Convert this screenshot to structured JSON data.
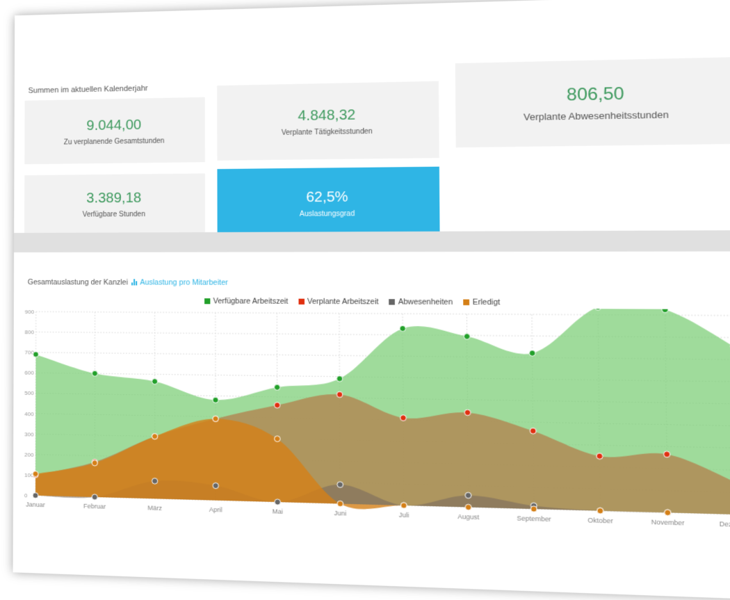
{
  "summary": {
    "title": "Summen im aktuellen Kalenderjahr",
    "tiles": [
      {
        "value": "9.044,00",
        "label": "Zu verplanende Gesamtstunden"
      },
      {
        "value": "4.848,32",
        "label": "Verplante Tätigkeitsstunden"
      },
      {
        "value": "806,50",
        "label": "Verplante Abwesenheitsstunden"
      },
      {
        "value": "3.389,18",
        "label": "Verfügbare Stunden"
      },
      {
        "value": "62,5%",
        "label": "Auslastungsgrad"
      }
    ]
  },
  "chart_header": {
    "title": "Gesamtauslastung der Kanzlei",
    "link_label": "Auslastung pro Mitarbeiter",
    "link_icon": "bar-chart-icon"
  },
  "colors": {
    "accent": "#2fb5e5",
    "green": "#7fcf7a",
    "red": "#e03010",
    "grey": "#666666",
    "orange": "#d47f17"
  },
  "chart_data": {
    "type": "area",
    "x": [
      "Januar",
      "Februar",
      "März",
      "April",
      "Mai",
      "Juni",
      "Juli",
      "August",
      "September",
      "Oktober",
      "November",
      "Dezember"
    ],
    "ylim": [
      0,
      900
    ],
    "yticks": [
      0,
      100,
      200,
      300,
      400,
      500,
      600,
      700,
      800,
      900
    ],
    "grid": true,
    "legend_position": "top-center",
    "series": [
      {
        "name": "Verfügbare Arbeitszeit",
        "color": "#22a02a",
        "fill": "#7fcf7a",
        "fill_opacity": 0.75,
        "values": [
          690,
          600,
          565,
          480,
          545,
          590,
          830,
          795,
          720,
          935,
          925,
          760
        ]
      },
      {
        "name": "Verplante Arbeitszeit",
        "color": "#e03010",
        "fill": "#b08a55",
        "fill_opacity": 0.85,
        "values": [
          100,
          170,
          300,
          390,
          460,
          515,
          410,
          440,
          360,
          250,
          265,
          145
        ]
      },
      {
        "name": "Abwesenheiten",
        "color": "#666666",
        "fill": "#7a6b5e",
        "fill_opacity": 0.6,
        "values": [
          0,
          0,
          85,
          70,
          0,
          90,
          0,
          55,
          15,
          0,
          0,
          0
        ]
      },
      {
        "name": "Erledigt",
        "color": "#d47f17",
        "fill": "#d47f17",
        "fill_opacity": 0.8,
        "values": [
          105,
          165,
          300,
          390,
          300,
          0,
          0,
          0,
          0,
          0,
          0,
          0
        ]
      }
    ]
  }
}
